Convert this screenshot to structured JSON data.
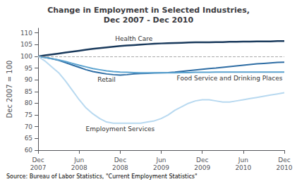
{
  "chart_data": {
    "type": "line",
    "title": "Change in Employment in Selected Industries,\nDec 2007 - Dec 2010",
    "ylabel": "Dec 2007 = 100",
    "source": "Source: Bureau of Labor Statistics, \"Current Employment Statistics\"",
    "categories": [
      "Dec\n2007",
      null,
      null,
      null,
      null,
      null,
      "Jun\n2008",
      null,
      null,
      null,
      null,
      null,
      "Dec\n2008",
      null,
      null,
      null,
      null,
      null,
      "Jun\n2009",
      null,
      null,
      null,
      null,
      null,
      "Dec\n2009",
      null,
      null,
      null,
      null,
      null,
      "Jun\n2010",
      null,
      null,
      null,
      null,
      null,
      "Dec\n2010"
    ],
    "ylim": [
      60,
      112
    ],
    "yticks": [
      60,
      65,
      70,
      75,
      80,
      85,
      90,
      95,
      100,
      105,
      110
    ],
    "grid": false,
    "reference_lines": [
      {
        "y": 100,
        "line_style": "dashed"
      }
    ],
    "series": [
      {
        "name": "Health Care",
        "color": "#1a3a5c",
        "values": [
          100.0,
          100.4,
          100.8,
          101.2,
          101.6,
          102.0,
          102.4,
          102.8,
          103.2,
          103.5,
          103.8,
          104.1,
          104.4,
          104.6,
          104.8,
          105.0,
          105.2,
          105.4,
          105.5,
          105.6,
          105.7,
          105.8,
          105.9,
          106.0,
          106.0,
          106.0,
          106.1,
          106.1,
          106.2,
          106.2,
          106.3,
          106.3,
          106.4,
          106.4,
          106.4,
          106.5,
          106.5
        ]
      },
      {
        "name": "Retail",
        "color": "#2e6da4",
        "values": [
          100.0,
          99.5,
          99.0,
          98.3,
          97.3,
          96.3,
          95.3,
          94.3,
          93.5,
          93.0,
          92.5,
          92.2,
          92.0,
          92.2,
          92.5,
          92.7,
          92.8,
          92.9,
          93.0,
          93.1,
          93.3,
          93.6,
          93.9,
          94.2,
          94.5,
          94.8,
          95.0,
          95.3,
          95.6,
          95.9,
          96.2,
          96.5,
          96.8,
          97.0,
          97.2,
          97.4,
          97.5
        ]
      },
      {
        "name": "Food Service and Drinking Places",
        "color": "#5ba3d0",
        "values": [
          100.0,
          99.5,
          99.0,
          98.5,
          97.8,
          97.0,
          96.2,
          95.5,
          94.8,
          94.3,
          93.8,
          93.5,
          93.3,
          93.2,
          93.1,
          93.0,
          93.0,
          93.0,
          93.0,
          93.0,
          93.0,
          93.1,
          93.1,
          93.2,
          93.2,
          93.2,
          93.3,
          93.3,
          93.3,
          93.3,
          93.3,
          93.3,
          93.3,
          93.3,
          93.3,
          93.3,
          93.3
        ]
      },
      {
        "name": "Employment Services",
        "color": "#b8d9f0",
        "values": [
          100.0,
          98.0,
          95.5,
          93.0,
          89.5,
          85.5,
          81.5,
          78.0,
          75.5,
          73.5,
          72.0,
          71.5,
          71.5,
          71.5,
          71.5,
          71.5,
          72.0,
          72.5,
          73.5,
          75.0,
          77.0,
          78.5,
          80.0,
          81.0,
          81.5,
          81.5,
          81.0,
          80.5,
          80.5,
          81.0,
          81.5,
          82.0,
          82.5,
          83.0,
          83.5,
          84.0,
          84.5
        ]
      }
    ]
  }
}
